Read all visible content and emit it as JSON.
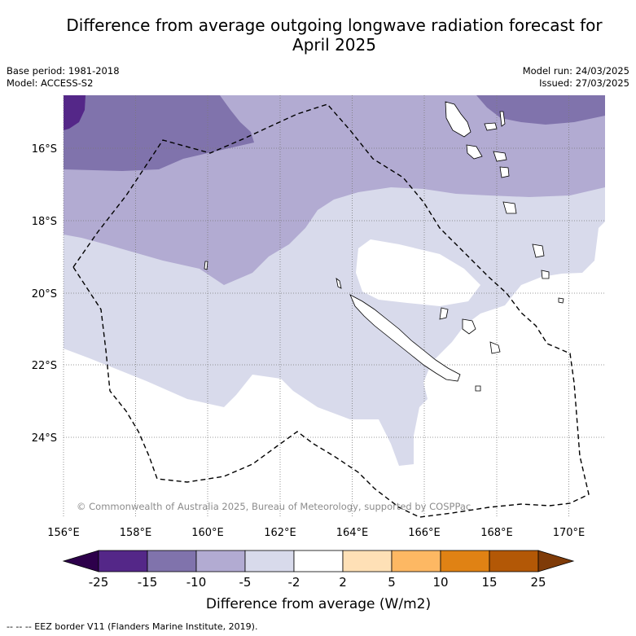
{
  "title_line1": "Difference from average outgoing longwave radiation forecast for",
  "title_line2": "April 2025",
  "meta_left": {
    "base_period": "Base period: 1981-2018",
    "model": "Model: ACCESS-S2"
  },
  "meta_right": {
    "model_run": "Model run: 24/03/2025",
    "issued": "Issued: 27/03/2025"
  },
  "map": {
    "lon_labels": [
      "156°E",
      "158°E",
      "160°E",
      "162°E",
      "164°E",
      "166°E",
      "168°E",
      "170°E"
    ],
    "lat_labels": [
      "16°S",
      "18°S",
      "20°S",
      "22°S",
      "24°S"
    ],
    "copyright": "© Commonwealth of Australia 2025, Bureau of Meteorology, supported by COSPPac"
  },
  "colorbar": {
    "title": "Difference from average (W/m2)",
    "tick_labels": [
      "-25",
      "-15",
      "-10",
      "-5",
      "-2",
      "2",
      "5",
      "10",
      "15",
      "25"
    ],
    "colors": [
      "#2d004b",
      "#542788",
      "#8073ac",
      "#b2abd2",
      "#d8daeb",
      "#ffffff",
      "#fee0b6",
      "#fdb863",
      "#e08214",
      "#b35806",
      "#7f3b08"
    ]
  },
  "footnote": "-- -- -- EEZ border V11 (Flanders Marine Institute, 2019)."
}
